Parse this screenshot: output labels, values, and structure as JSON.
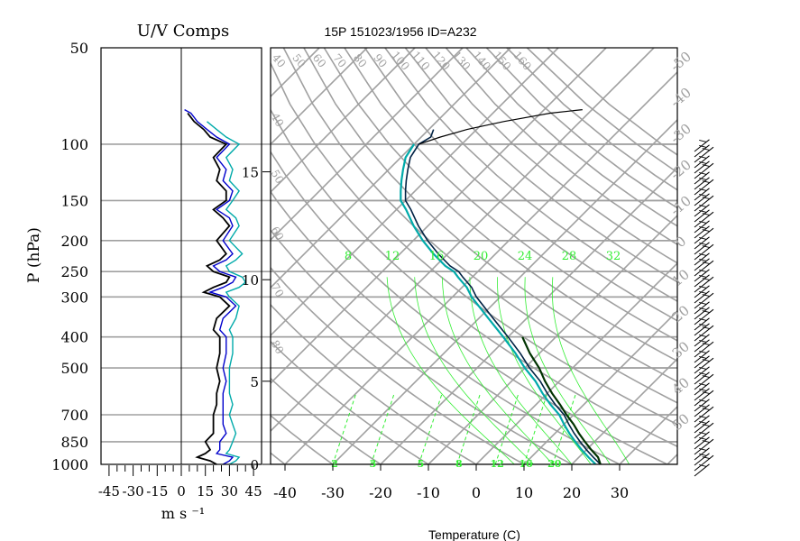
{
  "title": "15P 151023/1956 ID=A232",
  "chart_data": [
    {
      "type": "line",
      "title": "U/V Comps",
      "ylabel": "P (hPa)",
      "xlabel": "m s ⁻¹",
      "y_scale": "log",
      "ylim": [
        1000,
        50
      ],
      "xlim": [
        -50,
        50
      ],
      "y_ticks": [
        50,
        100,
        150,
        200,
        250,
        300,
        400,
        500,
        700,
        850,
        1000
      ],
      "x_ticks": [
        "-45",
        "-30",
        "-15",
        "0",
        "15",
        "30",
        "45"
      ],
      "grid": true,
      "series_colors": [
        "#000000",
        "#00aaaa",
        "#0000cc"
      ],
      "series": [
        {
          "p": [
            1000,
            975,
            950,
            925,
            900,
            850,
            800,
            750,
            700,
            650,
            600,
            550,
            500,
            450,
            400,
            380,
            350,
            320,
            300,
            290,
            280,
            270,
            260,
            250,
            240,
            230,
            220,
            200,
            180,
            170,
            160,
            150,
            140,
            130,
            120,
            110,
            100,
            95,
            90,
            85,
            80
          ],
          "value": [
            22,
            18,
            10,
            15,
            18,
            15,
            20,
            20,
            20,
            22,
            22,
            24,
            22,
            24,
            24,
            20,
            22,
            30,
            24,
            14,
            20,
            28,
            30,
            20,
            16,
            24,
            28,
            22,
            30,
            26,
            20,
            28,
            28,
            22,
            24,
            20,
            28,
            18,
            14,
            8,
            4
          ]
        },
        {
          "p": [
            1000,
            975,
            950,
            925,
            900,
            850,
            800,
            750,
            700,
            650,
            600,
            550,
            500,
            450,
            400,
            380,
            350,
            320,
            300,
            290,
            280,
            270,
            260,
            250,
            240,
            230,
            220,
            200,
            180,
            170,
            160,
            150,
            140,
            130,
            120,
            110,
            100,
            95,
            90,
            85
          ],
          "value": [
            30,
            34,
            36,
            28,
            30,
            32,
            34,
            32,
            30,
            32,
            30,
            30,
            30,
            32,
            32,
            30,
            34,
            36,
            30,
            28,
            36,
            40,
            38,
            30,
            28,
            34,
            38,
            30,
            36,
            34,
            28,
            32,
            36,
            30,
            32,
            28,
            36,
            28,
            22,
            16
          ]
        },
        {
          "p": [
            1000,
            975,
            950,
            925,
            900,
            850,
            800,
            750,
            700,
            650,
            600,
            550,
            500,
            450,
            400,
            380,
            350,
            320,
            300,
            290,
            280,
            270,
            260,
            250,
            240,
            230,
            220,
            200,
            180,
            170,
            160,
            150,
            140,
            130,
            120,
            110,
            100,
            95,
            90,
            85,
            80,
            78
          ],
          "value": [
            26,
            30,
            32,
            22,
            24,
            24,
            28,
            26,
            26,
            26,
            26,
            28,
            26,
            28,
            28,
            24,
            26,
            34,
            28,
            18,
            26,
            32,
            34,
            24,
            20,
            28,
            32,
            26,
            32,
            30,
            22,
            30,
            32,
            26,
            28,
            22,
            30,
            22,
            16,
            10,
            6,
            2
          ]
        }
      ]
    },
    {
      "type": "line",
      "subtype": "skew-T log-P sounding",
      "xlabel": "Temperature (C)",
      "x_ticks": [
        -40,
        -30,
        -20,
        -10,
        0,
        10,
        20,
        30
      ],
      "y_scale": "log",
      "ylim": [
        1000,
        50
      ],
      "height_ticks": [
        "0",
        "5",
        "10",
        "15"
      ],
      "mixing_ratio_labels": [
        "2",
        "3",
        "5",
        "8",
        "12",
        "16",
        "20"
      ],
      "theta_e_labels": [
        "8",
        "12",
        "16",
        "20",
        "24",
        "28",
        "32"
      ],
      "adiabat_labels_top": [
        "40",
        "50",
        "60",
        "70",
        "80",
        "90",
        "100",
        "110",
        "120",
        "130",
        "140",
        "150",
        "160"
      ],
      "adiabat_labels_left": [
        "40",
        "50",
        "60",
        "70",
        "80"
      ],
      "isotherm_labels_right": [
        "-50",
        "-40",
        "-30",
        "-20",
        "-10",
        "0",
        "10",
        "20",
        "30",
        "40",
        "50"
      ],
      "grid_color": "#a0a0a0",
      "moist_color": "#33ee33",
      "parcel_color": "#003300",
      "temperature_profile": {
        "p": [
          1000,
          950,
          900,
          850,
          800,
          750,
          700,
          650,
          600,
          550,
          500,
          450,
          400,
          350,
          300,
          280,
          260,
          250,
          240,
          220,
          200,
          180,
          160,
          150,
          140,
          130,
          120,
          110,
          100,
          95,
          90
        ],
        "t": [
          26,
          23,
          20,
          17,
          14,
          11,
          8,
          4,
          0,
          -4,
          -9,
          -14,
          -20,
          -27,
          -35,
          -38,
          -42,
          -44,
          -47,
          -52,
          -57,
          -62,
          -67,
          -70,
          -72,
          -74,
          -76,
          -78,
          -79,
          -78,
          -79
        ]
      },
      "dewpoint_profile": {
        "p": [
          1000,
          950,
          900,
          850,
          800,
          750,
          700,
          650,
          600,
          550,
          500,
          450,
          400,
          350,
          300,
          280,
          260,
          250,
          240,
          220,
          200,
          180,
          160,
          150,
          140,
          130,
          120,
          110,
          100
        ],
        "t": [
          25,
          22,
          19,
          16,
          13,
          10,
          7,
          3,
          -1,
          -5,
          -10,
          -15,
          -21,
          -28,
          -36,
          -39,
          -43,
          -45,
          -48,
          -53,
          -58,
          -63,
          -68,
          -71,
          -73,
          -75,
          -77,
          -79,
          -80
        ]
      },
      "upper_temperature": {
        "p": [
          100,
          95,
          90,
          85,
          80,
          78
        ],
        "t": [
          -79,
          -76,
          -72,
          -66,
          -58,
          -52
        ]
      },
      "parcel_path": {
        "p": [
          1000,
          950,
          900,
          850,
          800,
          750,
          700,
          650,
          600,
          550,
          500,
          450,
          400
        ],
        "t": [
          26,
          24,
          21,
          18,
          15,
          12,
          8.5,
          5,
          1,
          -3,
          -7,
          -12,
          -17
        ]
      }
    }
  ]
}
